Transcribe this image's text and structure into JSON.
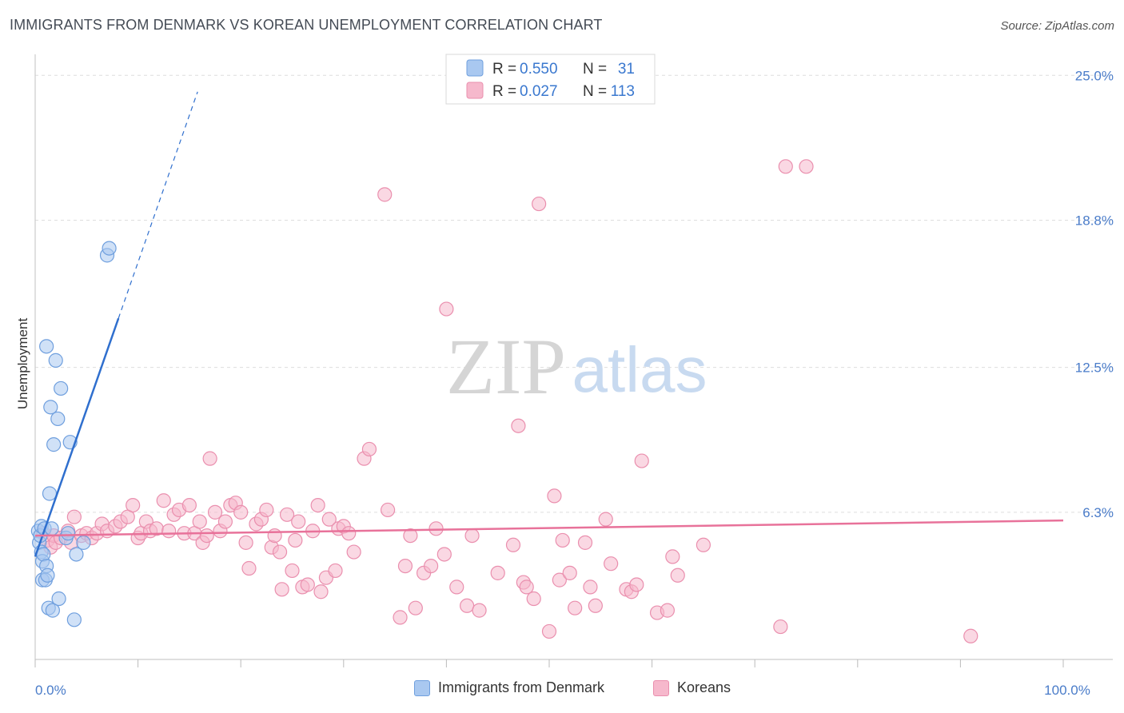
{
  "title": "IMMIGRANTS FROM DENMARK VS KOREAN UNEMPLOYMENT CORRELATION CHART",
  "source": "Source: ZipAtlas.com",
  "colors": {
    "blue_fill": "#a9c8f0",
    "blue_stroke": "#6f9fde",
    "blue_line": "#2f6fce",
    "pink_fill": "#f6b8cc",
    "pink_stroke": "#ea8fae",
    "pink_line": "#e8729a",
    "tick_label": "#4a7cc9",
    "grid": "#dddddd"
  },
  "legend_top": {
    "rows": [
      {
        "r_label": "R = ",
        "r_value": "0.550",
        "n_label": "N = ",
        "n_value": "31"
      },
      {
        "r_label": "R = ",
        "r_value": "0.027",
        "n_label": "N = ",
        "n_value": "113"
      }
    ]
  },
  "watermark": {
    "part1": "ZIP",
    "part2": "atlas"
  },
  "chart_data": {
    "type": "scatter",
    "title": "IMMIGRANTS FROM DENMARK VS KOREAN UNEMPLOYMENT CORRELATION CHART",
    "xlabel": "",
    "ylabel": "Unemployment",
    "xlim": [
      0,
      100
    ],
    "ylim": [
      0,
      25.9
    ],
    "x_tick_labels": [
      {
        "value": 0,
        "label": "0.0%"
      },
      {
        "value": 100,
        "label": "100.0%"
      }
    ],
    "y_tick_labels": [
      {
        "value": 6.3,
        "label": "6.3%"
      },
      {
        "value": 12.5,
        "label": "12.5%"
      },
      {
        "value": 18.8,
        "label": "18.8%"
      },
      {
        "value": 25.0,
        "label": "25.0%"
      }
    ],
    "x_minor_ticks": [
      0,
      10,
      20,
      30,
      40,
      50,
      60,
      70,
      80,
      90,
      100
    ],
    "legend": [
      "Immigrants from Denmark",
      "Koreans"
    ],
    "series": [
      {
        "name": "Immigrants from Denmark",
        "r": 0.55,
        "n": 31,
        "trend": {
          "x0": 0.0,
          "y0": 4.4,
          "x1": 8.1,
          "y1": 14.6,
          "dashed_to_x": 15.8,
          "dashed_to_y": 24.3
        },
        "points": [
          [
            0.3,
            5.5
          ],
          [
            0.4,
            5.0
          ],
          [
            0.5,
            5.3
          ],
          [
            0.6,
            4.6
          ],
          [
            0.6,
            5.7
          ],
          [
            0.7,
            4.2
          ],
          [
            0.7,
            3.4
          ],
          [
            0.8,
            4.5
          ],
          [
            0.9,
            5.6
          ],
          [
            1.0,
            3.4
          ],
          [
            1.1,
            4.0
          ],
          [
            1.1,
            13.4
          ],
          [
            1.2,
            3.6
          ],
          [
            1.3,
            2.2
          ],
          [
            1.4,
            7.1
          ],
          [
            1.5,
            10.8
          ],
          [
            1.6,
            5.6
          ],
          [
            1.7,
            2.1
          ],
          [
            1.8,
            9.2
          ],
          [
            2.0,
            12.8
          ],
          [
            2.2,
            10.3
          ],
          [
            2.3,
            2.6
          ],
          [
            2.5,
            11.6
          ],
          [
            3.0,
            5.2
          ],
          [
            3.2,
            5.4
          ],
          [
            3.4,
            9.3
          ],
          [
            3.8,
            1.7
          ],
          [
            4.0,
            4.5
          ],
          [
            4.7,
            5.0
          ],
          [
            7.0,
            17.3
          ],
          [
            7.2,
            17.6
          ]
        ]
      },
      {
        "name": "Koreans",
        "r": 0.027,
        "n": 113,
        "trend": {
          "x0": 0.0,
          "y0": 5.3,
          "x1": 100.0,
          "y1": 5.95
        },
        "points": [
          [
            0.8,
            5.4
          ],
          [
            1.2,
            5.1
          ],
          [
            1.5,
            4.8
          ],
          [
            1.8,
            5.3
          ],
          [
            2.0,
            5.0
          ],
          [
            2.5,
            5.2
          ],
          [
            3.2,
            5.5
          ],
          [
            3.5,
            5.0
          ],
          [
            3.8,
            6.1
          ],
          [
            4.5,
            5.3
          ],
          [
            5.0,
            5.4
          ],
          [
            5.5,
            5.2
          ],
          [
            6.0,
            5.4
          ],
          [
            6.5,
            5.8
          ],
          [
            7.0,
            5.5
          ],
          [
            7.8,
            5.7
          ],
          [
            8.3,
            5.9
          ],
          [
            9.0,
            6.1
          ],
          [
            9.5,
            6.6
          ],
          [
            10.0,
            5.2
          ],
          [
            10.3,
            5.4
          ],
          [
            10.8,
            5.9
          ],
          [
            11.2,
            5.5
          ],
          [
            11.8,
            5.6
          ],
          [
            12.5,
            6.8
          ],
          [
            13.0,
            5.5
          ],
          [
            13.5,
            6.2
          ],
          [
            14.0,
            6.4
          ],
          [
            14.5,
            5.4
          ],
          [
            15.0,
            6.6
          ],
          [
            15.5,
            5.4
          ],
          [
            16.0,
            5.9
          ],
          [
            16.3,
            5.0
          ],
          [
            16.7,
            5.3
          ],
          [
            17.0,
            8.6
          ],
          [
            17.5,
            6.3
          ],
          [
            18.0,
            5.5
          ],
          [
            18.5,
            5.9
          ],
          [
            19.0,
            6.6
          ],
          [
            19.5,
            6.7
          ],
          [
            20.0,
            6.3
          ],
          [
            20.5,
            5.0
          ],
          [
            20.8,
            3.9
          ],
          [
            21.5,
            5.8
          ],
          [
            22.0,
            6.0
          ],
          [
            22.5,
            6.4
          ],
          [
            23.0,
            4.8
          ],
          [
            23.3,
            5.3
          ],
          [
            23.8,
            4.6
          ],
          [
            24.0,
            3.0
          ],
          [
            24.5,
            6.2
          ],
          [
            25.0,
            3.8
          ],
          [
            25.3,
            5.1
          ],
          [
            25.6,
            5.9
          ],
          [
            26.0,
            3.1
          ],
          [
            26.5,
            3.2
          ],
          [
            27.0,
            5.5
          ],
          [
            27.5,
            6.6
          ],
          [
            27.8,
            2.9
          ],
          [
            28.3,
            3.5
          ],
          [
            28.6,
            6.0
          ],
          [
            29.2,
            3.8
          ],
          [
            29.5,
            5.6
          ],
          [
            30.0,
            5.7
          ],
          [
            30.5,
            5.4
          ],
          [
            31.0,
            4.6
          ],
          [
            32.0,
            8.6
          ],
          [
            32.5,
            9.0
          ],
          [
            34.0,
            19.9
          ],
          [
            34.3,
            6.4
          ],
          [
            35.5,
            1.8
          ],
          [
            36.0,
            4.0
          ],
          [
            36.5,
            5.3
          ],
          [
            37.0,
            2.2
          ],
          [
            37.8,
            3.7
          ],
          [
            38.5,
            4.0
          ],
          [
            39.0,
            5.6
          ],
          [
            39.8,
            4.5
          ],
          [
            40.0,
            15.0
          ],
          [
            41.0,
            3.1
          ],
          [
            42.0,
            2.3
          ],
          [
            42.5,
            5.3
          ],
          [
            43.2,
            2.1
          ],
          [
            45.0,
            3.7
          ],
          [
            46.5,
            4.9
          ],
          [
            47.0,
            10.0
          ],
          [
            47.5,
            3.3
          ],
          [
            47.8,
            3.1
          ],
          [
            48.5,
            2.6
          ],
          [
            49.0,
            19.5
          ],
          [
            50.0,
            1.2
          ],
          [
            50.5,
            7.0
          ],
          [
            51.0,
            3.4
          ],
          [
            51.3,
            5.1
          ],
          [
            52.0,
            3.7
          ],
          [
            52.5,
            2.2
          ],
          [
            53.5,
            5.0
          ],
          [
            54.0,
            3.1
          ],
          [
            54.5,
            2.3
          ],
          [
            55.5,
            6.0
          ],
          [
            56.0,
            4.1
          ],
          [
            57.5,
            3.0
          ],
          [
            58.0,
            2.9
          ],
          [
            58.5,
            3.2
          ],
          [
            59.0,
            8.5
          ],
          [
            60.5,
            2.0
          ],
          [
            61.5,
            2.1
          ],
          [
            62.0,
            4.4
          ],
          [
            62.5,
            3.6
          ],
          [
            65.0,
            4.9
          ],
          [
            72.5,
            1.4
          ],
          [
            73.0,
            21.1
          ],
          [
            75.0,
            21.1
          ],
          [
            91.0,
            1.0
          ]
        ]
      }
    ]
  }
}
